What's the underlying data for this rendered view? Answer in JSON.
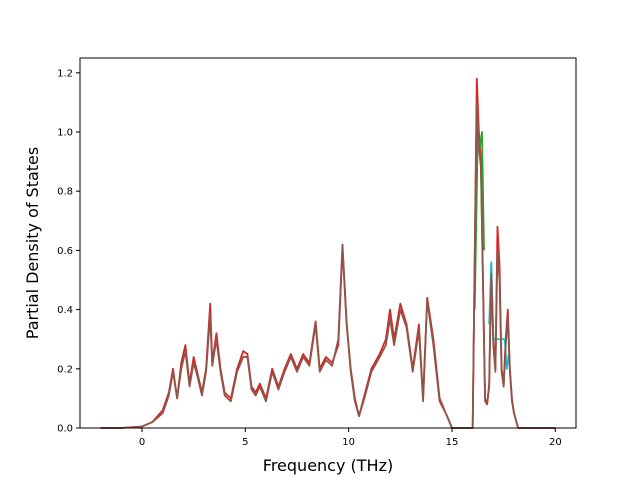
{
  "chart_data": {
    "type": "line",
    "title": "",
    "xlabel": "Frequency (THz)",
    "ylabel": "Partial Density of States",
    "xlim": [
      -3.0,
      21.0
    ],
    "ylim": [
      0.0,
      1.25
    ],
    "xticks": [
      0,
      5,
      10,
      15,
      20
    ],
    "yticks": [
      0.0,
      0.2,
      0.4,
      0.6,
      0.8,
      1.0,
      1.2
    ],
    "xtick_labels": [
      "0",
      "5",
      "10",
      "15",
      "20"
    ],
    "ytick_labels": [
      "0.0",
      "0.2",
      "0.4",
      "0.6",
      "0.8",
      "1.0",
      "1.2"
    ],
    "grid": false,
    "legend": "none",
    "series": [
      {
        "color": "#d62728",
        "x": [
          -2.0,
          -1.0,
          0.0,
          0.5,
          1.0,
          1.3,
          1.5,
          1.7,
          1.9,
          2.1,
          2.3,
          2.5,
          2.7,
          2.9,
          3.1,
          3.3,
          3.4,
          3.6,
          3.8,
          4.0,
          4.3,
          4.6,
          4.9,
          5.1,
          5.3,
          5.5,
          5.7,
          6.0,
          6.3,
          6.6,
          6.9,
          7.2,
          7.5,
          7.8,
          8.1,
          8.4,
          8.6,
          8.9,
          9.2,
          9.5,
          9.7,
          9.9,
          10.1,
          10.3,
          10.5,
          10.8,
          11.1,
          11.5,
          11.8,
          12.0,
          12.2,
          12.5,
          12.8,
          13.1,
          13.4,
          13.6,
          13.8,
          14.1,
          14.4,
          14.7,
          15.0,
          15.5,
          16.0,
          16.05,
          16.2,
          16.3,
          16.4,
          16.5,
          16.6,
          16.7,
          16.8,
          16.9,
          17.0,
          17.1,
          17.2,
          17.3,
          17.4,
          17.5,
          17.6,
          17.7,
          17.8,
          17.9,
          18.0,
          18.2,
          18.5,
          19.0,
          20.0
        ],
        "y": [
          0.0,
          0.0,
          0.005,
          0.02,
          0.06,
          0.12,
          0.2,
          0.1,
          0.22,
          0.28,
          0.15,
          0.24,
          0.18,
          0.12,
          0.2,
          0.42,
          0.22,
          0.32,
          0.2,
          0.12,
          0.1,
          0.2,
          0.26,
          0.25,
          0.14,
          0.12,
          0.15,
          0.1,
          0.2,
          0.14,
          0.2,
          0.25,
          0.2,
          0.25,
          0.22,
          0.36,
          0.2,
          0.24,
          0.22,
          0.28,
          0.61,
          0.35,
          0.2,
          0.1,
          0.04,
          0.12,
          0.2,
          0.25,
          0.3,
          0.4,
          0.3,
          0.42,
          0.35,
          0.2,
          0.35,
          0.1,
          0.44,
          0.3,
          0.1,
          0.05,
          0.0,
          0.0,
          0.0,
          0.3,
          1.18,
          1.0,
          0.9,
          0.5,
          0.1,
          0.08,
          0.15,
          0.55,
          0.3,
          0.2,
          0.68,
          0.55,
          0.2,
          0.15,
          0.3,
          0.4,
          0.2,
          0.1,
          0.05,
          0.0,
          0.0,
          0.0,
          0.0
        ]
      },
      {
        "color": "#2ca02c",
        "x": [
          16.1,
          16.25,
          16.35,
          16.45,
          16.55
        ],
        "y": [
          0.4,
          1.0,
          0.95,
          1.0,
          0.6
        ]
      },
      {
        "color": "#17becf",
        "x": [
          16.8,
          16.9,
          17.0,
          17.55,
          17.65,
          17.75
        ],
        "y": [
          0.35,
          0.56,
          0.3,
          0.3,
          0.2,
          0.25
        ]
      },
      {
        "color": "#8c564b",
        "x": [
          -2.0,
          -1.0,
          0.0,
          0.5,
          1.0,
          1.3,
          1.5,
          1.7,
          1.9,
          2.1,
          2.3,
          2.5,
          2.7,
          2.9,
          3.1,
          3.3,
          3.4,
          3.6,
          3.8,
          4.0,
          4.3,
          4.6,
          4.9,
          5.1,
          5.3,
          5.5,
          5.7,
          6.0,
          6.3,
          6.6,
          6.9,
          7.2,
          7.5,
          7.8,
          8.1,
          8.4,
          8.6,
          8.9,
          9.2,
          9.5,
          9.7,
          9.9,
          10.1,
          10.3,
          10.5,
          10.8,
          11.1,
          11.5,
          11.8,
          12.0,
          12.2,
          12.5,
          12.8,
          13.1,
          13.4,
          13.6,
          13.8,
          14.1,
          14.4,
          14.7,
          15.0,
          15.5,
          16.0,
          16.05,
          16.2,
          16.3,
          16.4,
          16.5,
          16.6,
          16.7,
          16.8,
          16.9,
          17.0,
          17.1,
          17.2,
          17.3,
          17.4,
          17.5,
          17.6,
          17.7,
          17.8,
          17.9,
          18.0,
          18.2,
          18.5,
          19.0,
          20.0
        ],
        "y": [
          0.0,
          0.0,
          0.005,
          0.02,
          0.05,
          0.11,
          0.19,
          0.1,
          0.2,
          0.26,
          0.14,
          0.22,
          0.17,
          0.11,
          0.19,
          0.38,
          0.21,
          0.3,
          0.19,
          0.11,
          0.09,
          0.19,
          0.24,
          0.24,
          0.13,
          0.11,
          0.14,
          0.09,
          0.19,
          0.13,
          0.19,
          0.24,
          0.19,
          0.24,
          0.21,
          0.35,
          0.19,
          0.23,
          0.21,
          0.3,
          0.62,
          0.36,
          0.19,
          0.09,
          0.04,
          0.11,
          0.19,
          0.24,
          0.28,
          0.37,
          0.28,
          0.4,
          0.34,
          0.19,
          0.33,
          0.09,
          0.43,
          0.28,
          0.09,
          0.05,
          0.0,
          0.0,
          0.0,
          0.28,
          1.1,
          0.95,
          0.88,
          0.48,
          0.09,
          0.08,
          0.14,
          0.52,
          0.28,
          0.19,
          0.6,
          0.5,
          0.19,
          0.14,
          0.28,
          0.38,
          0.19,
          0.09,
          0.05,
          0.0,
          0.0,
          0.0,
          0.0
        ]
      }
    ]
  }
}
